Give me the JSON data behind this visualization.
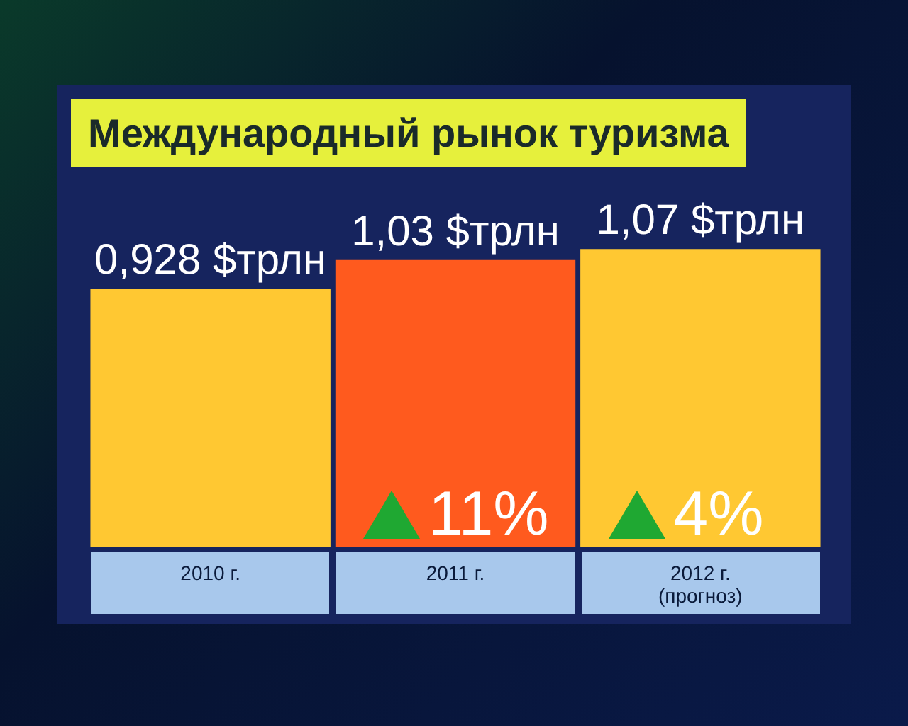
{
  "chart_data": {
    "type": "bar",
    "title": "Международный рынок туризма",
    "categories": [
      "2010 г.",
      "2011 г.",
      "2012 г.\n(прогноз)"
    ],
    "values": [
      0.928,
      1.03,
      1.07
    ],
    "colors": [
      "#ffc832",
      "#ff5a1e",
      "#ffc832"
    ],
    "value_labels": [
      "0,928 $трлн",
      "1,03 $трлн",
      "1,07 $трлн"
    ],
    "annotations": [
      "11%",
      "4%"
    ]
  }
}
